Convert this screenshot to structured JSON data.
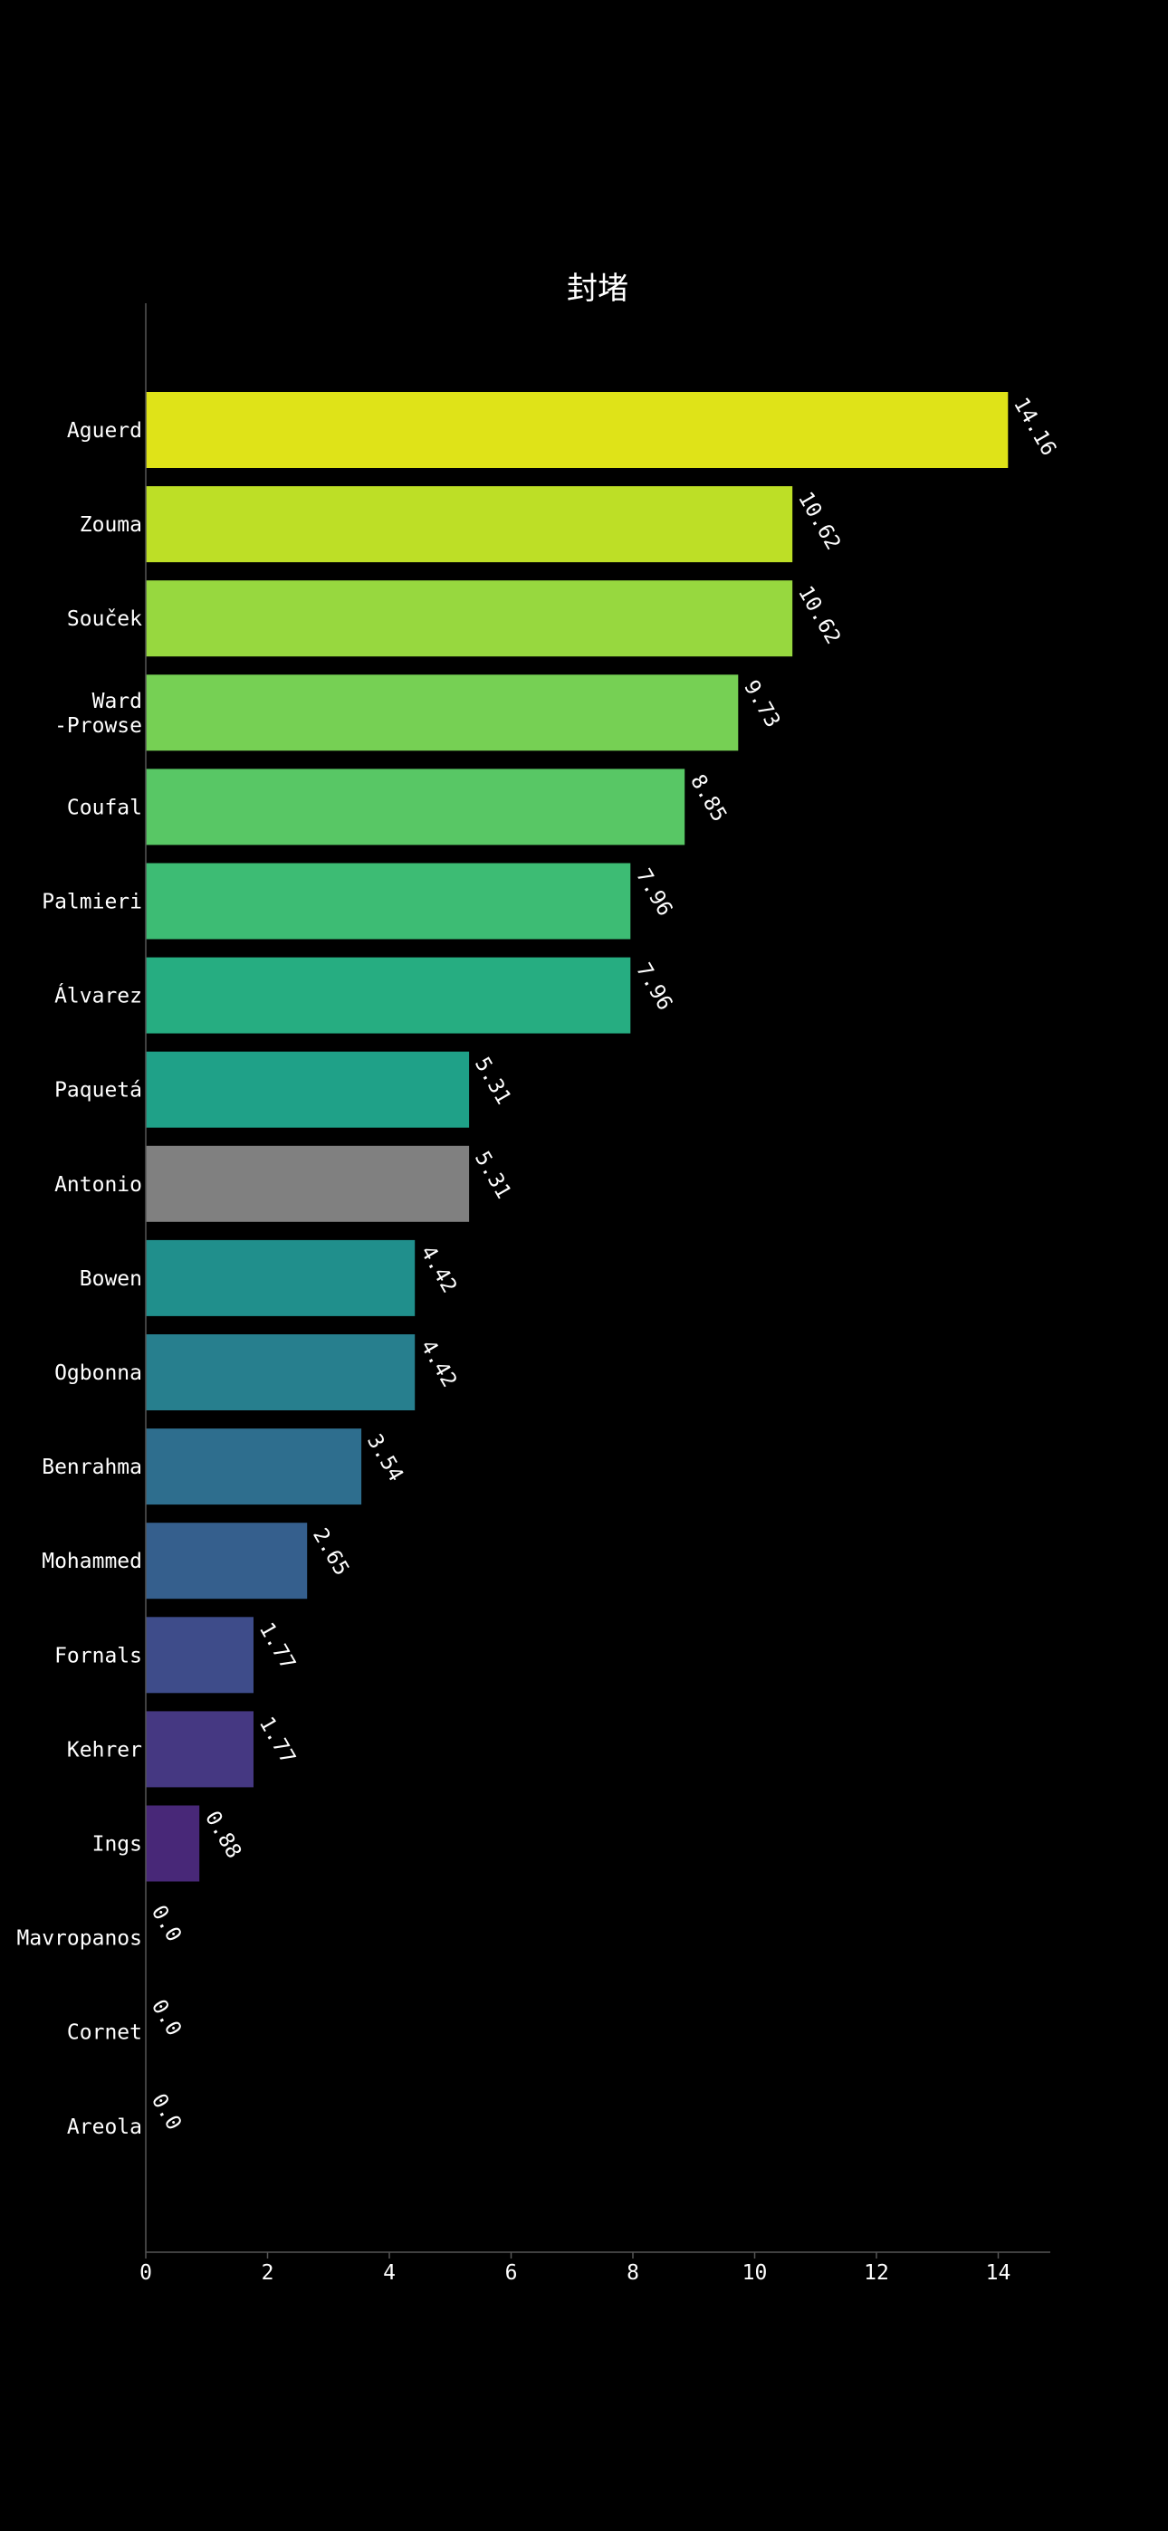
{
  "chart_data": {
    "type": "bar",
    "orientation": "horizontal",
    "title": "封堵",
    "xlabel": "",
    "ylabel": "",
    "xlim": [
      0,
      14.9
    ],
    "xticks": [
      "0",
      "2",
      "4",
      "6",
      "8",
      "10",
      "12",
      "14"
    ],
    "grid": false,
    "categories": [
      [
        "Aguerd"
      ],
      [
        "Zouma"
      ],
      [
        "Souček"
      ],
      [
        "Ward",
        "-Prowse"
      ],
      [
        "Coufal"
      ],
      [
        "Palmieri"
      ],
      [
        "Álvarez"
      ],
      [
        "Paquetá"
      ],
      [
        "Antonio"
      ],
      [
        "Bowen"
      ],
      [
        "Ogbonna"
      ],
      [
        "Benrahma"
      ],
      [
        "Mohammed"
      ],
      [
        "Fornals"
      ],
      [
        "Kehrer"
      ],
      [
        "Ings"
      ],
      [
        "Mavropanos"
      ],
      [
        "Cornet"
      ],
      [
        "Areola"
      ]
    ],
    "values": [
      14.16,
      10.62,
      10.62,
      9.73,
      8.85,
      7.96,
      7.96,
      5.31,
      5.31,
      4.42,
      4.42,
      3.54,
      2.65,
      1.77,
      1.77,
      0.88,
      0.0,
      0.0,
      0.0
    ],
    "value_labels": [
      "14.16",
      "10.62",
      "10.62",
      "9.73",
      "8.85",
      "7.96",
      "7.96",
      "5.31",
      "5.31",
      "4.42",
      "4.42",
      "3.54",
      "2.65",
      "1.77",
      "1.77",
      "0.88",
      "0.0",
      "0.0",
      "0.0"
    ],
    "colors": [
      "#dfe318",
      "#bddf26",
      "#97d83f",
      "#76d054",
      "#58c765",
      "#3dbc74",
      "#26ad81",
      "#1fa188",
      "#808080",
      "#208f8c",
      "#277f8e",
      "#2e6e8e",
      "#355f8d",
      "#3e4c8a",
      "#453882",
      "#482878",
      "#471163",
      "#440154",
      "#440154"
    ]
  }
}
